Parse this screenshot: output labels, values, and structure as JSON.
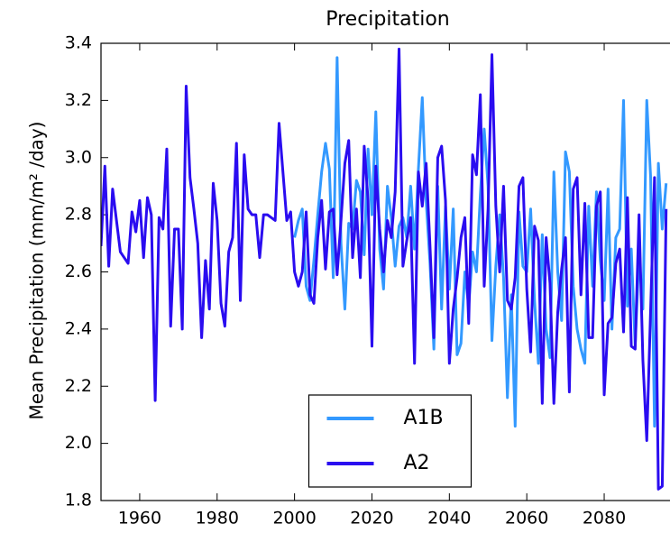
{
  "chart_data": {
    "type": "line",
    "title": "Precipitation",
    "y_label": "Mean Precipitation (mm/m² /day)",
    "x": [
      1950,
      1951,
      1952,
      1953,
      1954,
      1955,
      1956,
      1957,
      1958,
      1959,
      1960,
      1961,
      1962,
      1963,
      1964,
      1965,
      1966,
      1967,
      1968,
      1969,
      1970,
      1971,
      1972,
      1973,
      1974,
      1975,
      1976,
      1977,
      1978,
      1979,
      1980,
      1981,
      1982,
      1983,
      1984,
      1985,
      1986,
      1987,
      1988,
      1989,
      1990,
      1991,
      1992,
      1993,
      1994,
      1995,
      1996,
      1997,
      1998,
      1999,
      2000,
      2001,
      2002,
      2003,
      2004,
      2005,
      2006,
      2007,
      2008,
      2009,
      2010,
      2011,
      2012,
      2013,
      2014,
      2015,
      2016,
      2017,
      2018,
      2019,
      2020,
      2021,
      2022,
      2023,
      2024,
      2025,
      2026,
      2027,
      2028,
      2029,
      2030,
      2031,
      2032,
      2033,
      2034,
      2035,
      2036,
      2037,
      2038,
      2039,
      2040,
      2041,
      2042,
      2043,
      2044,
      2045,
      2046,
      2047,
      2048,
      2049,
      2050,
      2051,
      2052,
      2053,
      2054,
      2055,
      2056,
      2057,
      2058,
      2059,
      2060,
      2061,
      2062,
      2063,
      2064,
      2065,
      2066,
      2067,
      2068,
      2069,
      2070,
      2071,
      2072,
      2073,
      2074,
      2075,
      2076,
      2077,
      2078,
      2079,
      2080,
      2081,
      2082,
      2083,
      2084,
      2085,
      2086,
      2087,
      2088,
      2089,
      2090,
      2091,
      2092,
      2093,
      2094,
      2095,
      2096
    ],
    "series": [
      {
        "name": "A1B",
        "color": "#3399ff",
        "values": [
          null,
          null,
          null,
          null,
          null,
          null,
          null,
          null,
          null,
          null,
          null,
          null,
          null,
          null,
          null,
          null,
          null,
          null,
          null,
          null,
          null,
          null,
          null,
          null,
          null,
          null,
          null,
          null,
          null,
          null,
          null,
          null,
          null,
          null,
          null,
          null,
          null,
          null,
          null,
          null,
          null,
          null,
          null,
          null,
          null,
          null,
          null,
          null,
          null,
          null,
          2.72,
          2.78,
          2.82,
          2.55,
          2.5,
          2.64,
          2.8,
          2.95,
          3.05,
          2.96,
          2.58,
          3.35,
          2.7,
          2.47,
          2.77,
          2.75,
          2.92,
          2.88,
          2.66,
          3.03,
          2.8,
          3.16,
          2.68,
          2.54,
          2.9,
          2.79,
          2.62,
          2.76,
          2.79,
          2.72,
          2.9,
          2.68,
          2.96,
          3.21,
          2.85,
          2.63,
          2.33,
          2.9,
          2.47,
          2.83,
          2.54,
          2.82,
          2.31,
          2.35,
          2.6,
          2.48,
          2.67,
          2.6,
          2.87,
          3.1,
          2.9,
          2.36,
          2.62,
          2.8,
          2.58,
          2.16,
          2.52,
          2.06,
          2.81,
          2.62,
          2.6,
          2.82,
          2.5,
          2.28,
          2.73,
          2.4,
          2.3,
          2.95,
          2.6,
          2.43,
          3.02,
          2.95,
          2.55,
          2.4,
          2.33,
          2.28,
          2.83,
          2.55,
          2.88,
          2.64,
          2.5,
          2.89,
          2.4,
          2.72,
          2.75,
          3.2,
          2.48,
          2.68,
          2.34,
          2.66,
          2.47,
          3.2,
          2.93,
          2.06,
          2.98,
          2.75,
          2.91
        ]
      },
      {
        "name": "A2",
        "color": "#2a0cf0",
        "values": [
          2.69,
          2.97,
          2.62,
          2.89,
          2.78,
          2.67,
          2.65,
          2.63,
          2.81,
          2.74,
          2.85,
          2.65,
          2.86,
          2.8,
          2.15,
          2.79,
          2.75,
          3.03,
          2.41,
          2.75,
          2.75,
          2.4,
          3.25,
          2.93,
          2.82,
          2.7,
          2.37,
          2.64,
          2.47,
          2.91,
          2.78,
          2.49,
          2.41,
          2.67,
          2.72,
          3.05,
          2.5,
          3.01,
          2.82,
          2.8,
          2.8,
          2.65,
          2.8,
          2.8,
          2.79,
          2.78,
          3.12,
          2.95,
          2.78,
          2.81,
          2.6,
          2.55,
          2.6,
          2.81,
          2.52,
          2.49,
          2.72,
          2.85,
          2.61,
          2.81,
          2.82,
          2.59,
          2.78,
          2.98,
          3.06,
          2.65,
          2.82,
          2.58,
          3.04,
          2.85,
          2.34,
          2.97,
          2.75,
          2.6,
          2.78,
          2.72,
          2.88,
          3.38,
          2.62,
          2.71,
          2.79,
          2.28,
          2.95,
          2.83,
          2.98,
          2.69,
          2.37,
          3.0,
          3.04,
          2.85,
          2.28,
          2.47,
          2.58,
          2.72,
          2.79,
          2.42,
          3.01,
          2.94,
          3.22,
          2.55,
          2.82,
          3.36,
          2.83,
          2.6,
          2.9,
          2.5,
          2.47,
          2.58,
          2.9,
          2.93,
          2.54,
          2.32,
          2.76,
          2.71,
          2.14,
          2.72,
          2.56,
          2.14,
          2.46,
          2.61,
          2.72,
          2.18,
          2.89,
          2.93,
          2.52,
          2.84,
          2.37,
          2.37,
          2.83,
          2.88,
          2.17,
          2.42,
          2.44,
          2.63,
          2.68,
          2.39,
          2.86,
          2.34,
          2.33,
          2.8,
          2.29,
          2.01,
          2.47,
          2.93,
          1.84,
          1.85,
          2.82
        ]
      }
    ],
    "xlim": [
      1950,
      2097
    ],
    "xticks": [
      1960,
      1980,
      2000,
      2020,
      2040,
      2060,
      2080
    ],
    "ylim": [
      1.8,
      3.4
    ],
    "yticks": [
      1.8,
      {
        "value": 2,
        "label": "2.0"
      },
      2.2,
      2.4,
      2.6,
      2.8,
      {
        "value": 3,
        "label": "3.0"
      },
      3.2,
      3.4
    ],
    "legend": "lower center"
  }
}
